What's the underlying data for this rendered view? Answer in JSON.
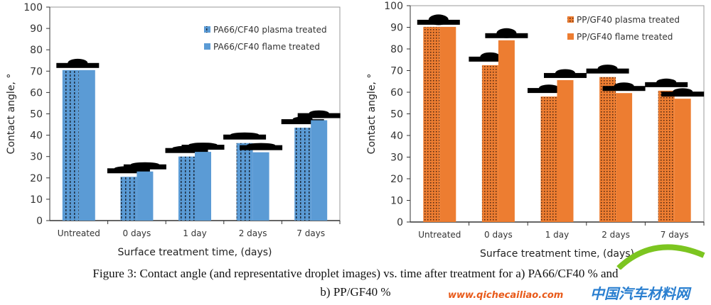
{
  "chart_data": [
    {
      "type": "bar",
      "title": "",
      "xlabel": "Surface treatment time, (days)",
      "ylabel": "Contact angle, °",
      "ylim": [
        0,
        100
      ],
      "yticks": [
        "0",
        "10",
        "20",
        "30",
        "40",
        "50",
        "60",
        "70",
        "80",
        "90",
        "100"
      ],
      "categories": [
        "Untreated",
        "0 days",
        "1 day",
        "2 days",
        "7 days"
      ],
      "series": [
        {
          "name": "PA66/CF40 plasma treated",
          "values": [
            70.5,
            20.5,
            30,
            36.3,
            43.5
          ],
          "color": "#5b9bd5",
          "pattern": "dotted"
        },
        {
          "name": "PA66/CF40 flame treated",
          "values": [
            70.5,
            23,
            32.2,
            32,
            47
          ],
          "color": "#5b9bd5",
          "pattern": "solid"
        }
      ],
      "legend": "top-right",
      "grid": false
    },
    {
      "type": "bar",
      "title": "",
      "xlabel": "Surface treatment time, (days)",
      "ylabel": "Contact angle, °",
      "ylim": [
        0,
        100
      ],
      "yticks": [
        "0",
        "10",
        "20",
        "30",
        "40",
        "50",
        "60",
        "70",
        "80",
        "90",
        "100"
      ],
      "categories": [
        "Untreated",
        "0 days",
        "1 day",
        "2 days",
        "7 days"
      ],
      "series": [
        {
          "name": "PP/GF40 plasma treated",
          "values": [
            90.2,
            72.5,
            58,
            67,
            60.7
          ],
          "color": "#ed7d31",
          "pattern": "dotted"
        },
        {
          "name": "PP/GF40 flame treated",
          "values": [
            90.2,
            84,
            65.6,
            59.6,
            57
          ],
          "color": "#ed7d31",
          "pattern": "solid"
        }
      ],
      "legend": "top-right",
      "grid": false
    }
  ],
  "caption": {
    "line1": "Figure 3: Contact angle (and representative droplet images) vs. time after treatment for a) PA66/CF40 % and",
    "line2": "b) PP/GF40 %"
  },
  "watermark": {
    "cn": "中国汽车材料网",
    "url": "www.qichecailiao.com"
  }
}
